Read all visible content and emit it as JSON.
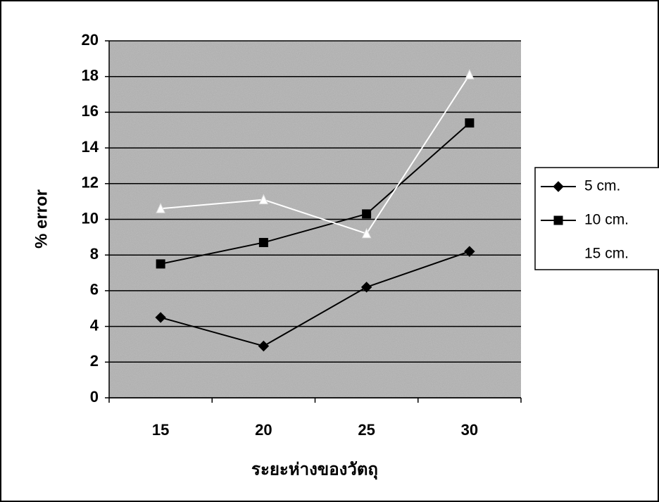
{
  "chart_data": {
    "type": "line",
    "x_label": "ระยะห่างของวัตถุ",
    "y_label": "% error",
    "categories": [
      "15",
      "20",
      "25",
      "30"
    ],
    "series": [
      {
        "name": "5 cm.",
        "color": "#000000",
        "marker": "diamond",
        "values": [
          4.5,
          2.9,
          6.2,
          8.2
        ]
      },
      {
        "name": "10 cm.",
        "color": "#000000",
        "marker": "square",
        "values": [
          7.5,
          8.7,
          10.3,
          15.4
        ]
      },
      {
        "name": "15 cm.",
        "color": "#ffffff",
        "marker": "triangle",
        "values": [
          10.6,
          11.1,
          9.2,
          18.1
        ]
      }
    ],
    "ylim": [
      0,
      20
    ],
    "yticks": [
      0,
      2,
      4,
      6,
      8,
      10,
      12,
      14,
      16,
      18,
      20
    ],
    "grid": true,
    "legend": "right"
  }
}
